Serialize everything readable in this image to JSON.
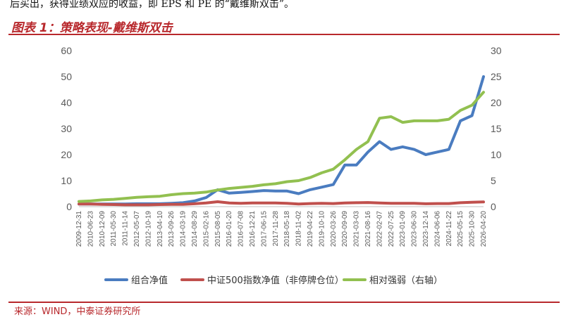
{
  "header": {
    "intro_text": "后买出，获得业绩双应的收益，即 EPS 和 PE 的“戴维斯双击”。",
    "figure_title": "图表 1：策略表现-戴维斯双击"
  },
  "footer": {
    "source": "来源：WIND，中泰证券研究所"
  },
  "colors": {
    "accent": "#b8282c",
    "series_blue": "#4a7cc0",
    "series_red": "#c0504d",
    "series_green": "#92c050"
  },
  "chart_data": {
    "type": "line",
    "x_ticks": [
      "2009-12-31",
      "2010-06-23",
      "2010-12-09",
      "2011-05-30",
      "2011-11-14",
      "2012-05-07",
      "2012-10-19",
      "2013-04-10",
      "2013-09-26",
      "2014-03-19",
      "2014-08-29",
      "2015-02-16",
      "2015-08-05",
      "2016-01-20",
      "2016-07-08",
      "2016-12-21",
      "2017-06-15",
      "2017-11-28",
      "2018-05-18",
      "2018-11-02",
      "2019-04-22",
      "2019-10-10",
      "2020-03-26",
      "2020-09-09",
      "2021-03-03",
      "2021-08-16",
      "2022-02-07",
      "2022-07-25",
      "2023-01-09",
      "2023-06-30",
      "2023-12-14",
      "2024-06-06",
      "2024-11-22",
      "2025-05-15",
      "2025-10-30",
      "2026-04-20"
    ],
    "ylim_left": [
      0,
      60
    ],
    "ylim_right": [
      0,
      30
    ],
    "y_ticks_left": [
      0,
      10,
      20,
      30,
      40,
      50,
      60
    ],
    "y_ticks_right": [
      0,
      5,
      10,
      15,
      20,
      25,
      30
    ],
    "grid": false,
    "legend_position": "bottom",
    "series": [
      {
        "name": "组合净值",
        "axis": "left",
        "values": [
          1.0,
          1.0,
          1.0,
          1.0,
          1.0,
          1.1,
          1.1,
          1.1,
          1.3,
          1.5,
          2.2,
          3.5,
          6.5,
          5.2,
          5.5,
          5.8,
          6.2,
          6.0,
          6.0,
          5.0,
          6.5,
          7.5,
          8.5,
          16,
          16,
          21,
          25,
          22,
          23,
          22,
          20,
          21,
          22,
          33,
          35,
          50
        ]
      },
      {
        "name": "中证500指数净值（非停牌仓位）",
        "axis": "left",
        "values": [
          1.0,
          1.0,
          0.9,
          0.8,
          0.7,
          0.7,
          0.7,
          0.8,
          0.9,
          0.9,
          1.1,
          1.4,
          1.9,
          1.4,
          1.3,
          1.4,
          1.4,
          1.4,
          1.3,
          1.0,
          1.2,
          1.3,
          1.2,
          1.4,
          1.5,
          1.6,
          1.4,
          1.3,
          1.3,
          1.3,
          1.1,
          1.2,
          1.2,
          1.5,
          1.7,
          1.8
        ]
      },
      {
        "name": "相对强弱（右轴）",
        "axis": "right",
        "values": [
          1.0,
          1.1,
          1.3,
          1.4,
          1.6,
          1.8,
          1.9,
          2.0,
          2.3,
          2.5,
          2.6,
          2.8,
          3.2,
          3.5,
          3.7,
          3.9,
          4.2,
          4.4,
          4.8,
          5.0,
          5.6,
          6.5,
          7.2,
          9.0,
          11,
          12.5,
          17,
          17.3,
          16.2,
          16.5,
          16.5,
          16.5,
          16.8,
          18.5,
          19.5,
          22
        ]
      }
    ]
  }
}
